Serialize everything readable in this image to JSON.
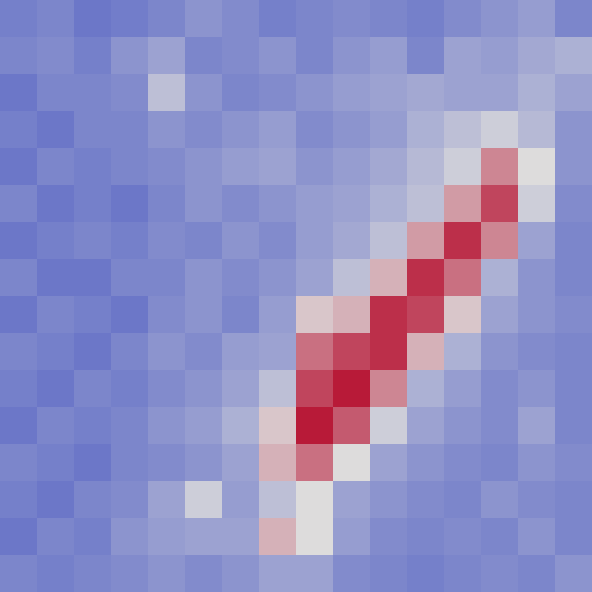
{
  "chart_data": {
    "type": "heatmap",
    "tick_labels": false,
    "xlim": [
      0,
      16
    ],
    "ylim": [
      0,
      16
    ],
    "zlim": [
      0,
      1
    ],
    "colors": [
      "#3b4cc0",
      "#dddcdc",
      "#b40426"
    ],
    "cells": [
      [
        0.18,
        0.2,
        0.15,
        0.17,
        0.2,
        0.25,
        0.22,
        0.18,
        0.2,
        0.22,
        0.2,
        0.18,
        0.22,
        0.25,
        0.28,
        0.2
      ],
      [
        0.2,
        0.22,
        0.18,
        0.25,
        0.3,
        0.2,
        0.22,
        0.25,
        0.2,
        0.25,
        0.28,
        0.2,
        0.3,
        0.28,
        0.32,
        0.35
      ],
      [
        0.15,
        0.2,
        0.2,
        0.22,
        0.4,
        0.25,
        0.2,
        0.22,
        0.25,
        0.28,
        0.3,
        0.32,
        0.3,
        0.3,
        0.35,
        0.3
      ],
      [
        0.18,
        0.15,
        0.2,
        0.2,
        0.25,
        0.22,
        0.25,
        0.28,
        0.22,
        0.25,
        0.28,
        0.35,
        0.4,
        0.45,
        0.38,
        0.25
      ],
      [
        0.15,
        0.2,
        0.18,
        0.2,
        0.22,
        0.25,
        0.28,
        0.3,
        0.25,
        0.28,
        0.32,
        0.38,
        0.45,
        0.7,
        0.5,
        0.25
      ],
      [
        0.2,
        0.15,
        0.18,
        0.15,
        0.2,
        0.25,
        0.22,
        0.25,
        0.28,
        0.3,
        0.35,
        0.4,
        0.65,
        0.85,
        0.45,
        0.22
      ],
      [
        0.15,
        0.18,
        0.2,
        0.18,
        0.22,
        0.2,
        0.25,
        0.22,
        0.28,
        0.32,
        0.4,
        0.65,
        0.9,
        0.7,
        0.3,
        0.2
      ],
      [
        0.2,
        0.15,
        0.15,
        0.2,
        0.2,
        0.25,
        0.22,
        0.25,
        0.3,
        0.4,
        0.6,
        0.9,
        0.75,
        0.35,
        0.25,
        0.2
      ],
      [
        0.15,
        0.2,
        0.18,
        0.15,
        0.22,
        0.25,
        0.2,
        0.28,
        0.55,
        0.6,
        0.9,
        0.85,
        0.55,
        0.3,
        0.25,
        0.22
      ],
      [
        0.2,
        0.18,
        0.15,
        0.2,
        0.25,
        0.22,
        0.28,
        0.3,
        0.75,
        0.85,
        0.9,
        0.6,
        0.35,
        0.25,
        0.22,
        0.2
      ],
      [
        0.18,
        0.15,
        0.2,
        0.18,
        0.22,
        0.25,
        0.3,
        0.4,
        0.85,
        0.95,
        0.7,
        0.35,
        0.28,
        0.22,
        0.25,
        0.2
      ],
      [
        0.15,
        0.2,
        0.18,
        0.2,
        0.25,
        0.28,
        0.35,
        0.55,
        0.95,
        0.8,
        0.45,
        0.3,
        0.25,
        0.22,
        0.3,
        0.2
      ],
      [
        0.2,
        0.18,
        0.15,
        0.2,
        0.22,
        0.25,
        0.3,
        0.6,
        0.75,
        0.5,
        0.3,
        0.25,
        0.22,
        0.2,
        0.25,
        0.22
      ],
      [
        0.18,
        0.15,
        0.2,
        0.22,
        0.3,
        0.45,
        0.28,
        0.4,
        0.5,
        0.3,
        0.25,
        0.22,
        0.2,
        0.25,
        0.22,
        0.2
      ],
      [
        0.15,
        0.2,
        0.18,
        0.25,
        0.28,
        0.3,
        0.3,
        0.6,
        0.5,
        0.28,
        0.22,
        0.2,
        0.22,
        0.2,
        0.25,
        0.2
      ],
      [
        0.2,
        0.18,
        0.2,
        0.22,
        0.25,
        0.22,
        0.25,
        0.3,
        0.3,
        0.22,
        0.2,
        0.18,
        0.2,
        0.22,
        0.2,
        0.25
      ]
    ]
  }
}
